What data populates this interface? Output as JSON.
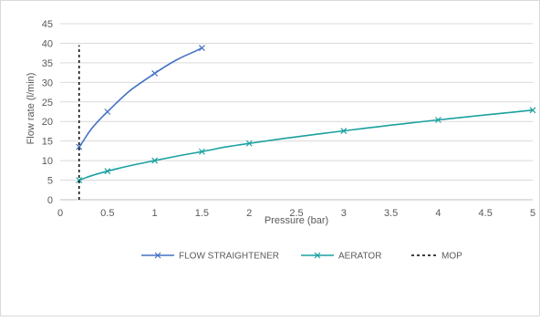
{
  "chart_data": {
    "type": "line",
    "xlabel": "Pressure (bar)",
    "ylabel": "Flow rate (l/min)",
    "xlim": [
      0,
      5
    ],
    "ylim": [
      0,
      45
    ],
    "x_ticks": [
      "0",
      "0.5",
      "1",
      "1.5",
      "2",
      "2.5",
      "3",
      "3.5",
      "4",
      "4.5",
      "5"
    ],
    "y_ticks": [
      "0",
      "5",
      "10",
      "15",
      "20",
      "25",
      "30",
      "35",
      "40",
      "45"
    ],
    "grid": "horizontal",
    "legend_position": "bottom",
    "series": [
      {
        "name": "FLOW STRAIGHTENER",
        "color": "#4472C4",
        "marker": "x",
        "x": [
          0.2,
          0.5,
          1,
          1.5
        ],
        "y": [
          13.5,
          22.5,
          32.3,
          38.8
        ]
      },
      {
        "name": "AERATOR",
        "color": "#1AA0A0",
        "marker": "x",
        "x": [
          0.2,
          0.5,
          1,
          1.5,
          2,
          3,
          4,
          5
        ],
        "y": [
          5.0,
          7.3,
          10.0,
          12.3,
          14.4,
          17.6,
          20.4,
          22.9
        ]
      },
      {
        "name": "MOP",
        "color": "#000000",
        "style": "dashed",
        "x": [
          0.2,
          0.2
        ],
        "y": [
          0,
          39.5
        ]
      }
    ]
  }
}
